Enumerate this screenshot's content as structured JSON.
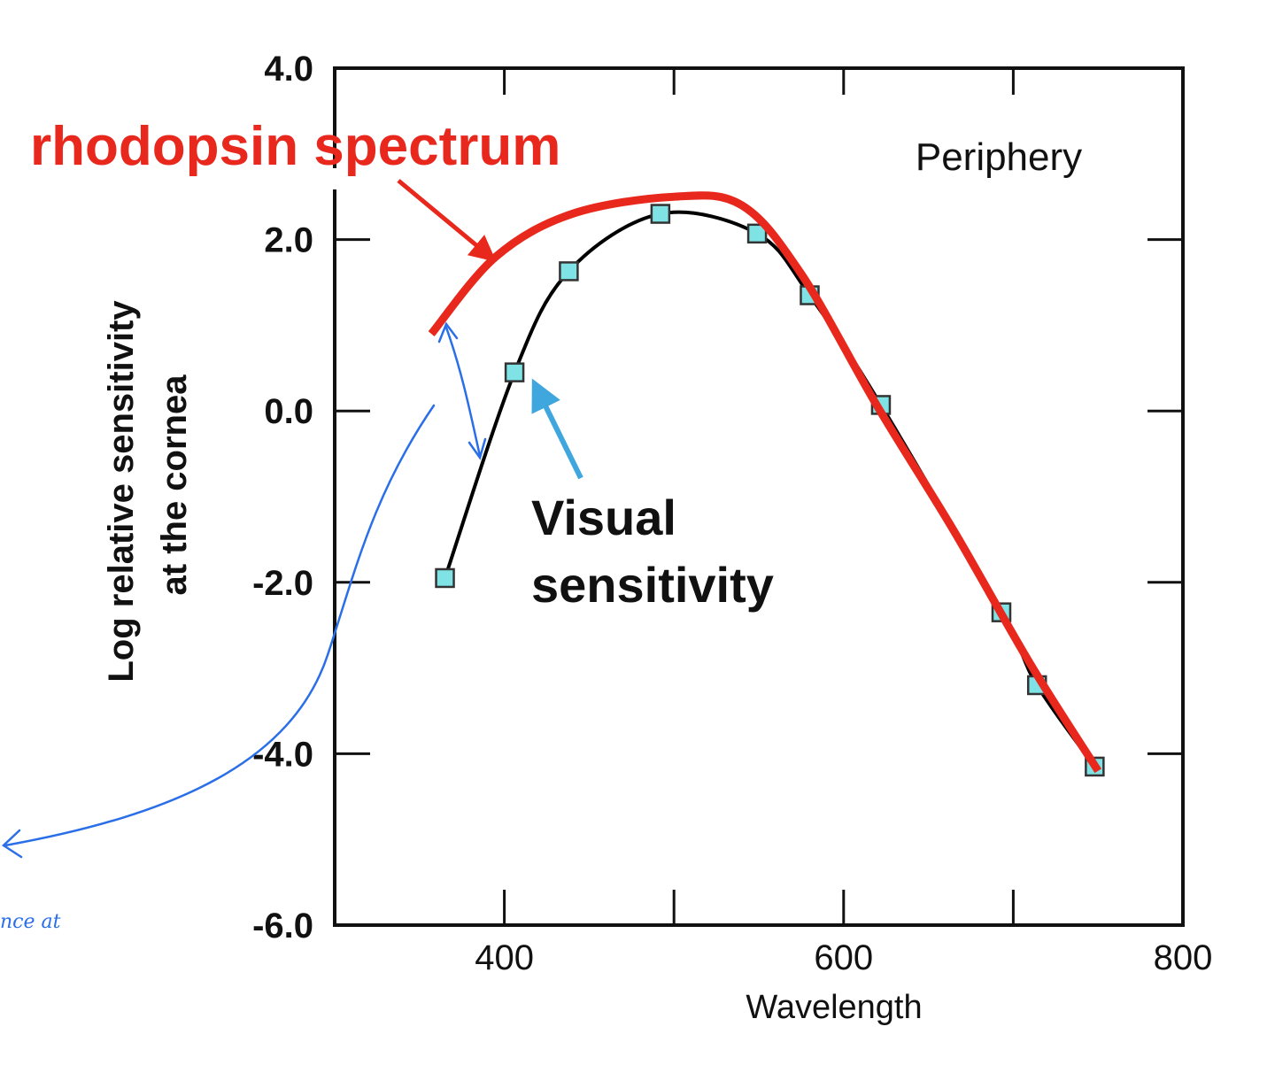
{
  "chart_data": {
    "type": "line",
    "title": "",
    "panel_label": "Periphery",
    "xlabel": "Wavelength",
    "ylabel_lines": [
      "Log relative sensitivity",
      "at the cornea"
    ],
    "xlim": [
      300,
      800
    ],
    "ylim": [
      -6.0,
      4.0
    ],
    "x_ticks": [
      {
        "value": 400,
        "label": "400"
      },
      {
        "value": 600,
        "label": "600"
      },
      {
        "value": 800,
        "label": "800"
      }
    ],
    "y_ticks": [
      {
        "value": 4.0,
        "label": "4.0"
      },
      {
        "value": 2.0,
        "label": "2.0"
      },
      {
        "value": 0.0,
        "label": "0.0"
      },
      {
        "value": -2.0,
        "label": "-2.0"
      },
      {
        "value": -4.0,
        "label": "-4.0"
      },
      {
        "value": -6.0,
        "label": "-6.0"
      }
    ],
    "grid": false,
    "series": [
      {
        "key": "visual",
        "color": "#000000",
        "marker_color": "#7fe3e6",
        "points": [
          {
            "x": 365,
            "y": -1.95
          },
          {
            "x": 406,
            "y": 0.45
          },
          {
            "x": 438,
            "y": 1.63
          },
          {
            "x": 492,
            "y": 2.3
          },
          {
            "x": 549,
            "y": 2.07
          },
          {
            "x": 580,
            "y": 1.35
          },
          {
            "x": 622,
            "y": 0.07
          },
          {
            "x": 693,
            "y": -2.35
          },
          {
            "x": 714,
            "y": -3.2
          },
          {
            "x": 748,
            "y": -4.15
          }
        ]
      },
      {
        "key": "rhodopsin",
        "color": "#e8281d",
        "points": [
          {
            "x": 357,
            "y": 0.9
          },
          {
            "x": 395,
            "y": 1.8
          },
          {
            "x": 440,
            "y": 2.3
          },
          {
            "x": 500,
            "y": 2.5
          },
          {
            "x": 540,
            "y": 2.4
          },
          {
            "x": 575,
            "y": 1.6
          },
          {
            "x": 620,
            "y": 0.05
          },
          {
            "x": 665,
            "y": -1.4
          },
          {
            "x": 710,
            "y": -2.95
          },
          {
            "x": 750,
            "y": -4.2
          }
        ]
      }
    ],
    "annotations": {
      "rhodopsin_label": "rhodopsin spectrum",
      "rhodopsin_color": "#e8281d",
      "visual_label_lines": [
        "Visual",
        "sensitivity"
      ],
      "visual_arrow_color": "#3fa6de",
      "handwriting_color": "#2a6fe8",
      "handwriting_text": "nce at"
    }
  }
}
